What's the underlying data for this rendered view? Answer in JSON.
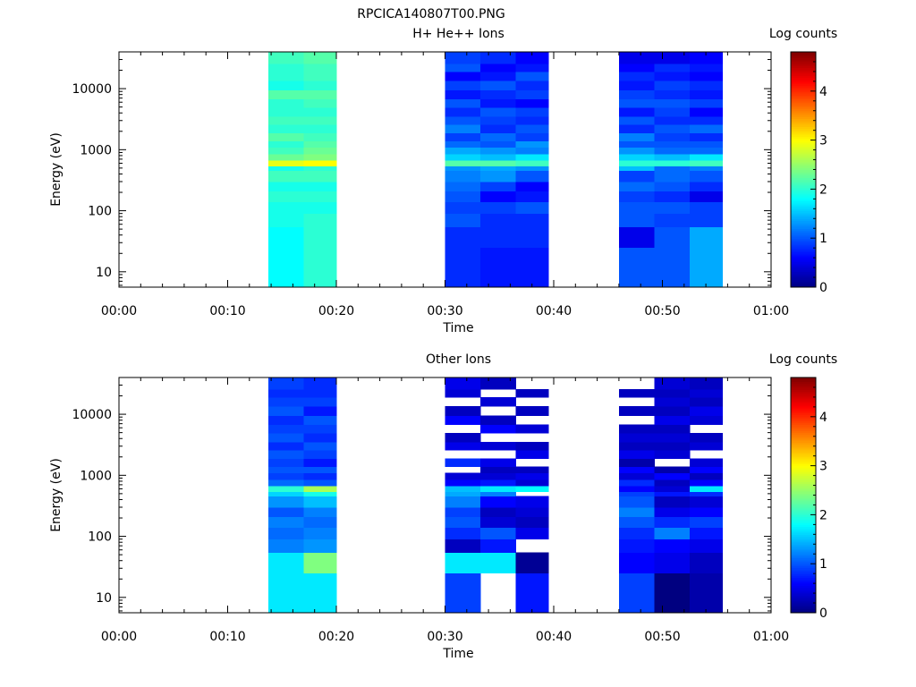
{
  "figure_title": "RPCICA140807T00.PNG",
  "chart_data": [
    {
      "type": "heatmap",
      "title": "H+ He++ Ions",
      "xlabel": "Time",
      "ylabel": "Energy (eV)",
      "colorbar_label": "Log counts",
      "colormap": "jet",
      "clim": [
        0,
        4.8
      ],
      "colorbar_ticks": [
        "0",
        "1",
        "2",
        "3",
        "4"
      ],
      "x_tick_labels": [
        "00:00",
        "00:10",
        "00:20",
        "00:30",
        "00:40",
        "00:50",
        "01:00"
      ],
      "xlim": [
        "00:00",
        "01:00"
      ],
      "y_scale": "log",
      "ylim": [
        5.6,
        40000
      ],
      "y_tick_labels": [
        "10",
        "100",
        "1000",
        "10000"
      ],
      "energy_bin_edges_eV": [
        5.6,
        25,
        55,
        90,
        140,
        210,
        300,
        460,
        540,
        680,
        860,
        1100,
        1400,
        1900,
        2600,
        3500,
        4900,
        6800,
        9500,
        13500,
        19000,
        26000,
        40000
      ],
      "time_bin_edges": [
        "00:13:45",
        "00:17:00",
        "00:20:00",
        "00:30:00",
        "00:33:15",
        "00:36:30",
        "00:39:30",
        "00:46:00",
        "00:49:15",
        "00:52:30",
        "00:55:30"
      ],
      "columns": [
        {
          "start": "00:13:45",
          "end": "00:17:00",
          "log_counts": [
            1.8,
            1.8,
            1.9,
            1.9,
            2.0,
            1.9,
            2.1,
            1.9,
            2.9,
            2.3,
            2.1,
            2.0,
            2.2,
            2.0,
            2.1,
            2.0,
            2.0,
            2.2,
            1.9,
            2.0,
            2.0,
            2.1
          ]
        },
        {
          "start": "00:17:00",
          "end": "00:20:00",
          "log_counts": [
            2.0,
            2.0,
            2.0,
            1.9,
            2.0,
            1.9,
            2.1,
            2.0,
            3.0,
            2.4,
            2.3,
            2.2,
            2.1,
            2.0,
            2.1,
            2.0,
            2.1,
            2.2,
            2.0,
            2.1,
            2.1,
            2.2
          ]
        },
        {
          "start": "00:30:00",
          "end": "00:33:15",
          "log_counts": [
            0.8,
            0.8,
            1.0,
            0.9,
            1.0,
            1.1,
            1.2,
            1.3,
            2.2,
            1.6,
            1.4,
            1.1,
            0.9,
            1.2,
            1.0,
            0.8,
            1.0,
            0.7,
            0.9,
            0.6,
            1.0,
            0.9
          ]
        },
        {
          "start": "00:33:15",
          "end": "00:36:30",
          "log_counts": [
            0.7,
            0.8,
            0.8,
            0.9,
            0.6,
            0.9,
            1.3,
            1.4,
            2.2,
            1.5,
            1.3,
            1.0,
            1.1,
            0.8,
            0.9,
            1.0,
            0.7,
            0.8,
            1.0,
            0.7,
            0.6,
            0.8
          ]
        },
        {
          "start": "00:36:30",
          "end": "00:39:30",
          "log_counts": [
            0.7,
            0.8,
            0.8,
            1.0,
            0.7,
            0.6,
            1.0,
            1.3,
            2.1,
            1.7,
            1.2,
            1.3,
            0.9,
            1.0,
            0.8,
            0.9,
            0.6,
            0.9,
            0.8,
            1.0,
            0.7,
            0.6
          ]
        },
        {
          "start": "00:46:00",
          "end": "00:49:15",
          "log_counts": [
            1.0,
            0.5,
            1.0,
            1.0,
            0.9,
            1.1,
            0.9,
            1.5,
            2.0,
            1.6,
            1.3,
            1.0,
            1.2,
            0.8,
            1.0,
            0.7,
            1.0,
            0.9,
            0.7,
            0.8,
            0.6,
            0.5
          ]
        },
        {
          "start": "00:49:15",
          "end": "00:52:30",
          "log_counts": [
            1.0,
            1.0,
            0.9,
            1.0,
            0.8,
            1.0,
            1.1,
            1.1,
            2.0,
            1.5,
            1.1,
            1.0,
            0.9,
            1.0,
            0.8,
            0.9,
            1.0,
            0.8,
            0.9,
            0.7,
            0.8,
            0.5
          ]
        },
        {
          "start": "00:52:30",
          "end": "00:55:30",
          "log_counts": [
            1.4,
            1.4,
            0.9,
            0.9,
            0.5,
            0.8,
            1.0,
            1.2,
            2.1,
            1.7,
            1.1,
            1.0,
            0.8,
            1.1,
            0.8,
            0.6,
            0.9,
            0.7,
            0.8,
            0.6,
            0.7,
            0.6
          ]
        }
      ]
    },
    {
      "type": "heatmap",
      "title": "Other Ions",
      "xlabel": "Time",
      "ylabel": "Energy (eV)",
      "colorbar_label": "Log counts",
      "colormap": "jet",
      "clim": [
        0,
        4.8
      ],
      "colorbar_ticks": [
        "0",
        "1",
        "2",
        "3",
        "4"
      ],
      "x_tick_labels": [
        "00:00",
        "00:10",
        "00:20",
        "00:30",
        "00:40",
        "00:50",
        "01:00"
      ],
      "xlim": [
        "00:00",
        "01:00"
      ],
      "y_scale": "log",
      "ylim": [
        5.6,
        40000
      ],
      "y_tick_labels": [
        "10",
        "100",
        "1000",
        "10000"
      ],
      "energy_bin_edges_eV": [
        5.6,
        25,
        55,
        90,
        140,
        210,
        300,
        460,
        540,
        680,
        860,
        1100,
        1400,
        1900,
        2600,
        3500,
        4900,
        6800,
        9500,
        13500,
        19000,
        26000,
        40000
      ],
      "time_bin_edges": [
        "00:13:45",
        "00:17:00",
        "00:20:00",
        "00:30:00",
        "00:33:15",
        "00:36:30",
        "00:39:30",
        "00:46:00",
        "00:49:15",
        "00:52:30",
        "00:55:30"
      ],
      "columns": [
        {
          "start": "00:13:45",
          "end": "00:17:00",
          "log_counts": [
            1.7,
            1.7,
            1.2,
            1.1,
            1.2,
            1.0,
            1.3,
            1.6,
            2.0,
            1.1,
            0.9,
            1.0,
            0.9,
            1.0,
            0.8,
            1.0,
            0.9,
            0.8,
            1.0,
            0.9,
            0.8,
            0.9
          ]
        },
        {
          "start": "00:17:00",
          "end": "00:20:00",
          "log_counts": [
            1.7,
            2.4,
            1.3,
            1.2,
            1.1,
            1.2,
            1.5,
            1.9,
            2.6,
            1.0,
            0.8,
            1.0,
            0.7,
            0.9,
            1.0,
            0.8,
            0.9,
            1.0,
            0.7,
            0.9,
            0.8,
            0.8
          ]
        },
        {
          "start": "00:30:00",
          "end": "00:33:15",
          "log_counts": [
            0.9,
            1.7,
            0.3,
            0.8,
            1.0,
            0.9,
            1.2,
            1.4,
            1.5,
            0.6,
            0.4,
            null,
            0.8,
            null,
            0.5,
            0.3,
            null,
            0.6,
            0.3,
            null,
            0.4,
            0.5
          ]
        },
        {
          "start": "00:33:15",
          "end": "00:36:30",
          "log_counts": [
            null,
            1.7,
            0.7,
            1.0,
            0.4,
            0.3,
            0.6,
            1.2,
            1.7,
            0.7,
            0.4,
            0.3,
            0.5,
            null,
            0.4,
            null,
            0.6,
            0.3,
            null,
            0.4,
            null,
            0.3
          ]
        },
        {
          "start": "00:36:30",
          "end": "00:39:30",
          "log_counts": [
            0.7,
            0.1,
            null,
            0.5,
            0.3,
            0.4,
            0.5,
            null,
            1.8,
            0.4,
            0.5,
            0.3,
            null,
            0.5,
            0.3,
            null,
            0.4,
            null,
            0.3,
            null,
            0.3,
            null
          ]
        },
        {
          "start": "00:46:00",
          "end": "00:49:15",
          "log_counts": [
            0.9,
            0.6,
            0.7,
            0.8,
            1.0,
            1.2,
            1.0,
            0.9,
            0.6,
            0.8,
            0.4,
            0.6,
            0.2,
            0.5,
            0.3,
            0.4,
            0.3,
            null,
            0.3,
            null,
            0.3,
            null
          ]
        },
        {
          "start": "00:49:15",
          "end": "00:52:30",
          "log_counts": [
            0.0,
            0.5,
            0.6,
            1.2,
            0.8,
            0.5,
            0.3,
            0.7,
            0.4,
            0.3,
            0.6,
            0.2,
            null,
            0.4,
            0.3,
            0.4,
            0.3,
            0.5,
            0.3,
            0.4,
            0.3,
            0.4
          ]
        },
        {
          "start": "00:52:30",
          "end": "00:55:30",
          "log_counts": [
            0.2,
            0.3,
            0.5,
            0.7,
            0.9,
            0.6,
            0.4,
            0.8,
            1.7,
            0.6,
            0.3,
            0.6,
            0.4,
            null,
            0.4,
            0.3,
            null,
            0.4,
            0.5,
            0.3,
            0.4,
            0.3
          ]
        }
      ]
    }
  ]
}
